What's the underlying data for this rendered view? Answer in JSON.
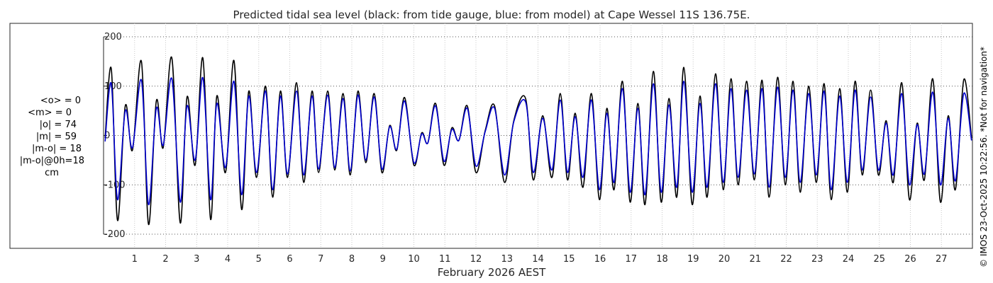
{
  "chart_data": {
    "type": "line",
    "title": "Predicted tidal sea level (black: from tide gauge, blue: from model) at Cape Wessel 11S 136.75E.",
    "xlabel": "February 2026 AEST",
    "ylabel": "",
    "xlim": [
      0,
      28
    ],
    "ylim": [
      -200,
      200
    ],
    "y_ticks": [
      -200,
      -100,
      0,
      100,
      200
    ],
    "y_tick_labels": [
      "-200",
      "-100",
      "0",
      "100",
      "200"
    ],
    "x_ticks": [
      1,
      2,
      3,
      4,
      5,
      6,
      7,
      8,
      9,
      10,
      11,
      12,
      13,
      14,
      15,
      16,
      17,
      18,
      19,
      20,
      21,
      22,
      23,
      24,
      25,
      26,
      27
    ],
    "x_tick_labels": [
      "1",
      "2",
      "3",
      "4",
      "5",
      "6",
      "7",
      "8",
      "9",
      "10",
      "11",
      "12",
      "13",
      "14",
      "15",
      "16",
      "17",
      "18",
      "19",
      "20",
      "21",
      "22",
      "23",
      "24",
      "25",
      "26",
      "27"
    ],
    "grid": true,
    "legend": "none",
    "series": [
      {
        "color": "#000000",
        "x": [
          0.05,
          0.25,
          0.45,
          0.7,
          0.93,
          1.22,
          1.45,
          1.7,
          1.92,
          2.2,
          2.47,
          2.69,
          2.95,
          3.2,
          3.45,
          3.65,
          3.93,
          4.2,
          4.45,
          4.68,
          4.93,
          5.22,
          5.45,
          5.7,
          5.93,
          6.22,
          6.45,
          6.72,
          6.93,
          7.22,
          7.45,
          7.72,
          7.95,
          8.2,
          8.45,
          8.72,
          8.97,
          9.22,
          9.45,
          9.7,
          10.0,
          10.25,
          10.45,
          10.7,
          10.97,
          11.22,
          11.45,
          11.72,
          12.0,
          12.3,
          12.6,
          12.92,
          13.22,
          13.6,
          13.85,
          14.15,
          14.45,
          14.72,
          14.95,
          15.2,
          15.45,
          15.72,
          15.98,
          16.22,
          16.45,
          16.72,
          16.97,
          17.22,
          17.45,
          17.72,
          17.97,
          18.22,
          18.47,
          18.7,
          18.97,
          19.22,
          19.45,
          19.72,
          19.97,
          20.22,
          20.45,
          20.72,
          20.97,
          21.22,
          21.45,
          21.72,
          21.97,
          22.22,
          22.45,
          22.72,
          22.97,
          23.22,
          23.45,
          23.72,
          23.97,
          24.22,
          24.45,
          24.72,
          24.97,
          25.22,
          25.45,
          25.72,
          25.97,
          26.22,
          26.45,
          26.72,
          26.97,
          27.22,
          27.45,
          27.72,
          27.97
        ],
        "y": [
          -5,
          135,
          -172,
          60,
          -30,
          150,
          -180,
          70,
          -25,
          157,
          -177,
          78,
          -60,
          157,
          -170,
          80,
          -75,
          152,
          -150,
          90,
          -85,
          100,
          -125,
          90,
          -85,
          107,
          -95,
          90,
          -75,
          90,
          -70,
          85,
          -80,
          90,
          -55,
          85,
          -75,
          20,
          -30,
          77,
          -60,
          5,
          -15,
          65,
          -60,
          15,
          -10,
          60,
          -75,
          10,
          60,
          -95,
          30,
          75,
          -90,
          40,
          -85,
          85,
          -90,
          45,
          -105,
          85,
          -130,
          55,
          -110,
          110,
          -135,
          65,
          -140,
          130,
          -135,
          75,
          -125,
          138,
          -140,
          80,
          -125,
          125,
          -110,
          115,
          -100,
          110,
          -90,
          112,
          -125,
          118,
          -100,
          110,
          -115,
          100,
          -95,
          105,
          -130,
          95,
          -115,
          110,
          -80,
          92,
          -80,
          30,
          -95,
          107,
          -130,
          25,
          -90,
          115,
          -135,
          40,
          -110,
          113,
          -5
        ]
      },
      {
        "color": "#0000cd",
        "x": [
          0.05,
          0.25,
          0.45,
          0.7,
          0.93,
          1.22,
          1.45,
          1.7,
          1.92,
          2.2,
          2.47,
          2.69,
          2.95,
          3.2,
          3.45,
          3.65,
          3.93,
          4.2,
          4.45,
          4.68,
          4.93,
          5.22,
          5.45,
          5.7,
          5.93,
          6.22,
          6.45,
          6.72,
          6.93,
          7.22,
          7.45,
          7.72,
          7.95,
          8.2,
          8.45,
          8.72,
          8.97,
          9.22,
          9.45,
          9.7,
          10.0,
          10.25,
          10.45,
          10.7,
          10.97,
          11.22,
          11.45,
          11.72,
          12.0,
          12.3,
          12.6,
          12.92,
          13.22,
          13.6,
          13.85,
          14.15,
          14.45,
          14.72,
          14.95,
          15.2,
          15.45,
          15.72,
          15.98,
          16.22,
          16.45,
          16.72,
          16.97,
          17.22,
          17.45,
          17.72,
          17.97,
          18.22,
          18.47,
          18.7,
          18.97,
          19.22,
          19.45,
          19.72,
          19.97,
          20.22,
          20.45,
          20.72,
          20.97,
          21.22,
          21.45,
          21.72,
          21.97,
          22.22,
          22.45,
          22.72,
          22.97,
          23.22,
          23.45,
          23.72,
          23.97,
          24.22,
          24.45,
          24.72,
          24.97,
          25.22,
          25.45,
          25.72,
          25.97,
          26.22,
          26.45,
          26.72,
          26.97,
          27.22,
          27.45,
          27.72,
          27.97
        ],
        "y": [
          -12,
          105,
          -130,
          50,
          -25,
          112,
          -140,
          55,
          -20,
          115,
          -135,
          60,
          -50,
          117,
          -130,
          65,
          -65,
          110,
          -120,
          80,
          -75,
          90,
          -110,
          80,
          -78,
          90,
          -80,
          80,
          -68,
          82,
          -65,
          75,
          -72,
          82,
          -50,
          78,
          -68,
          18,
          -28,
          70,
          -55,
          3,
          -15,
          60,
          -52,
          12,
          -10,
          55,
          -62,
          8,
          55,
          -80,
          28,
          68,
          -75,
          35,
          -70,
          72,
          -75,
          38,
          -85,
          72,
          -110,
          45,
          -95,
          95,
          -115,
          55,
          -120,
          105,
          -115,
          62,
          -105,
          110,
          -115,
          65,
          -105,
          105,
          -95,
          95,
          -85,
          92,
          -78,
          95,
          -105,
          98,
          -85,
          92,
          -95,
          85,
          -80,
          90,
          -110,
          80,
          -95,
          92,
          -70,
          78,
          -70,
          25,
          -80,
          85,
          -100,
          22,
          -78,
          88,
          -100,
          35,
          -92,
          85,
          -10
        ]
      }
    ]
  },
  "stats": {
    "lines": [
      "<o> = 0",
      "<m> = 0",
      "|o| = 74",
      "|m| = 59",
      "|m-o| = 18",
      "|m-o|@0h=18",
      "cm"
    ]
  },
  "credit": "© IMOS 23-Oct-2025 10:22:56. *Not for navigation*"
}
